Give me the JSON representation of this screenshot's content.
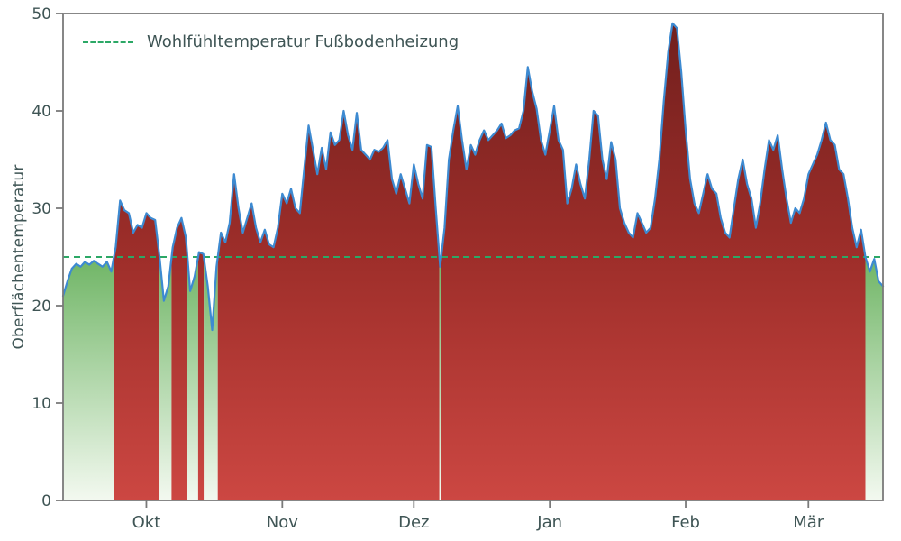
{
  "chart_data": {
    "type": "area",
    "title": "",
    "ylabel": "Oberflächentemperatur",
    "xlabel": "",
    "ylim": [
      0,
      50
    ],
    "xlim": [
      0,
      187
    ],
    "yticks": [
      0,
      10,
      20,
      30,
      40,
      50
    ],
    "xticks": [
      {
        "label": "Okt",
        "x": 19
      },
      {
        "label": "Nov",
        "x": 50
      },
      {
        "label": "Dez",
        "x": 80
      },
      {
        "label": "Jan",
        "x": 111
      },
      {
        "label": "Feb",
        "x": 142
      },
      {
        "label": "Mär",
        "x": 170
      }
    ],
    "threshold": {
      "value": 25,
      "label": "Wohlfühltemperatur Fußbodenheizung",
      "color": "#2ca866"
    },
    "grid": false,
    "legend_position": "upper left",
    "colors": {
      "line": "#3d8ad1",
      "red_top": "#701f1d",
      "red_mid": "#9e2e2a",
      "red_bottom": "#cc4742",
      "green_top": "#6fb565",
      "green_bottom": "#f3f9f0",
      "axis": "#7a7a7a",
      "text": "#3f5555"
    },
    "series": [
      {
        "name": "Oberflächentemperatur",
        "x_start": 0,
        "x_step": 1,
        "values": [
          21.0,
          22.5,
          23.8,
          24.3,
          24.0,
          24.5,
          24.2,
          24.6,
          24.3,
          24.0,
          24.5,
          23.5,
          26.0,
          30.8,
          29.8,
          29.5,
          27.5,
          28.3,
          28.0,
          29.5,
          29.0,
          28.8,
          25.0,
          20.5,
          22.0,
          26.0,
          28.0,
          29.0,
          27.0,
          21.5,
          23.0,
          25.5,
          25.3,
          22.0,
          17.5,
          24.0,
          27.5,
          26.5,
          28.5,
          33.5,
          30.0,
          27.5,
          29.0,
          30.5,
          28.0,
          26.5,
          27.8,
          26.3,
          26.0,
          28.0,
          31.5,
          30.5,
          32.0,
          30.0,
          29.5,
          34.0,
          38.5,
          36.0,
          33.5,
          36.2,
          34.0,
          37.8,
          36.5,
          37.0,
          40.0,
          37.5,
          36.0,
          39.8,
          36.0,
          35.5,
          35.0,
          36.0,
          35.8,
          36.2,
          37.0,
          33.0,
          31.5,
          33.5,
          32.0,
          30.5,
          34.5,
          32.5,
          31.0,
          36.5,
          36.3,
          30.0,
          24.0,
          28.0,
          35.0,
          38.0,
          40.5,
          37.0,
          34.0,
          36.5,
          35.5,
          37.0,
          38.0,
          37.0,
          37.5,
          38.0,
          38.7,
          37.2,
          37.5,
          38.0,
          38.2,
          40.0,
          44.5,
          42.0,
          40.2,
          37.0,
          35.5,
          38.0,
          40.5,
          37.0,
          36.0,
          30.5,
          32.0,
          34.5,
          32.5,
          31.0,
          35.0,
          40.0,
          39.5,
          35.0,
          33.0,
          36.8,
          35.0,
          30.0,
          28.5,
          27.5,
          27.0,
          29.5,
          28.5,
          27.5,
          28.0,
          31.0,
          35.0,
          41.0,
          46.0,
          49.0,
          48.5,
          44.0,
          38.0,
          33.0,
          30.5,
          29.5,
          31.5,
          33.5,
          32.0,
          31.5,
          29.0,
          27.5,
          27.0,
          30.0,
          33.0,
          35.0,
          32.5,
          31.0,
          28.0,
          30.5,
          34.0,
          37.0,
          36.0,
          37.5,
          34.0,
          31.0,
          28.5,
          30.0,
          29.5,
          31.0,
          33.5,
          34.5,
          35.5,
          37.0,
          38.8,
          37.0,
          36.5,
          34.0,
          33.5,
          31.0,
          28.0,
          26.0,
          27.8,
          25.0,
          23.5,
          24.8,
          22.5,
          22.0
        ]
      }
    ]
  }
}
